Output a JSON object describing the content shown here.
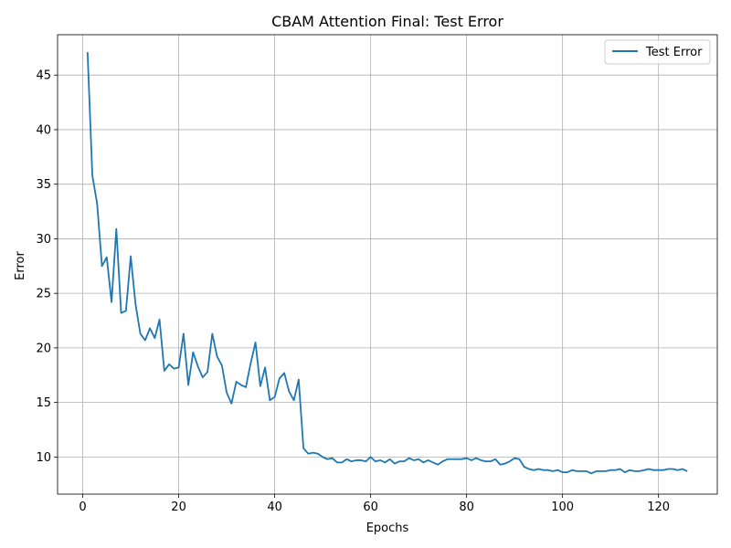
{
  "chart_data": {
    "type": "line",
    "title": "CBAM Attention Final: Test Error",
    "xlabel": "Epochs",
    "ylabel": "Error",
    "xlim": [
      -5.25,
      132.25
    ],
    "ylim": [
      6.6,
      48.7
    ],
    "xticks": [
      0,
      20,
      40,
      60,
      80,
      100,
      120
    ],
    "yticks": [
      10,
      15,
      20,
      25,
      30,
      35,
      40,
      45
    ],
    "grid": true,
    "legend_position": "top-right",
    "series": [
      {
        "name": "Test Error",
        "color": "#1f77b4",
        "x": [
          1,
          2,
          3,
          4,
          5,
          6,
          7,
          8,
          9,
          10,
          11,
          12,
          13,
          14,
          15,
          16,
          17,
          18,
          19,
          20,
          21,
          22,
          23,
          24,
          25,
          26,
          27,
          28,
          29,
          30,
          31,
          32,
          33,
          34,
          35,
          36,
          37,
          38,
          39,
          40,
          41,
          42,
          43,
          44,
          45,
          46,
          47,
          48,
          49,
          50,
          51,
          52,
          53,
          54,
          55,
          56,
          57,
          58,
          59,
          60,
          61,
          62,
          63,
          64,
          65,
          66,
          67,
          68,
          69,
          70,
          71,
          72,
          73,
          74,
          75,
          76,
          77,
          78,
          79,
          80,
          81,
          82,
          83,
          84,
          85,
          86,
          87,
          88,
          89,
          90,
          91,
          92,
          93,
          94,
          95,
          96,
          97,
          98,
          99,
          100,
          101,
          102,
          103,
          104,
          105,
          106,
          107,
          108,
          109,
          110,
          111,
          112,
          113,
          114,
          115,
          116,
          117,
          118,
          119,
          120,
          121,
          122,
          123,
          124,
          125,
          126
        ],
        "values": [
          47.1,
          35.8,
          33.2,
          27.5,
          28.3,
          24.2,
          30.9,
          23.2,
          23.4,
          28.4,
          24.0,
          21.3,
          20.7,
          21.8,
          20.9,
          22.6,
          17.9,
          18.5,
          18.1,
          18.2,
          21.3,
          16.6,
          19.6,
          18.3,
          17.3,
          17.8,
          21.3,
          19.2,
          18.4,
          15.9,
          14.9,
          16.9,
          16.6,
          16.4,
          18.6,
          20.5,
          16.5,
          18.2,
          15.2,
          15.5,
          17.2,
          17.7,
          16.0,
          15.2,
          17.1,
          10.8,
          10.3,
          10.4,
          10.3,
          10.0,
          9.8,
          9.9,
          9.5,
          9.5,
          9.8,
          9.6,
          9.7,
          9.7,
          9.6,
          10.0,
          9.6,
          9.7,
          9.5,
          9.8,
          9.4,
          9.6,
          9.6,
          9.9,
          9.7,
          9.8,
          9.5,
          9.7,
          9.5,
          9.3,
          9.6,
          9.8,
          9.8,
          9.8,
          9.8,
          9.9,
          9.7,
          9.9,
          9.7,
          9.6,
          9.6,
          9.8,
          9.3,
          9.4,
          9.6,
          9.9,
          9.8,
          9.1,
          8.9,
          8.8,
          8.9,
          8.8,
          8.8,
          8.7,
          8.8,
          8.6,
          8.6,
          8.8,
          8.7,
          8.7,
          8.7,
          8.5,
          8.7,
          8.7,
          8.7,
          8.8,
          8.8,
          8.9,
          8.6,
          8.8,
          8.7,
          8.7,
          8.8,
          8.9,
          8.8,
          8.8,
          8.8,
          8.9,
          8.9,
          8.8,
          8.9,
          8.7
        ]
      }
    ]
  }
}
